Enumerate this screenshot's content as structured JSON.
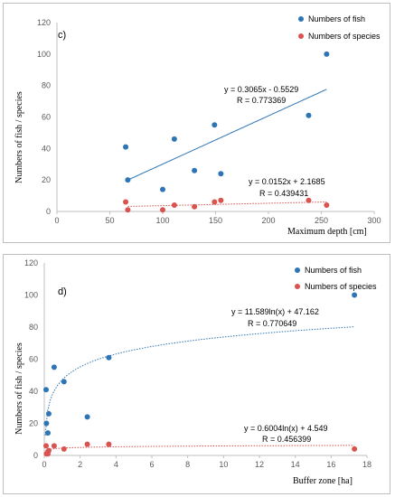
{
  "chart_data": [
    {
      "type": "scatter",
      "panel_label": "c)",
      "ylabel": "Numbers of fish / species",
      "xlabel": "Maximum depth [cm]",
      "xlim": [
        0,
        300
      ],
      "ylim": [
        0,
        120
      ],
      "xticks": [
        0,
        50,
        100,
        150,
        200,
        250,
        300
      ],
      "yticks": [
        0,
        20,
        40,
        60,
        80,
        100,
        120
      ],
      "legend_position": "top-right",
      "grid": false,
      "series": [
        {
          "name": "Numbers of fish",
          "color": "#2e75b6",
          "x": [
            65,
            67,
            100,
            111,
            130,
            149,
            155,
            238,
            255
          ],
          "y": [
            41,
            20,
            14,
            46,
            26,
            55,
            24,
            61,
            100
          ],
          "trendline": {
            "kind": "linear",
            "slope": 0.3065,
            "intercept": -0.5529,
            "x_range": [
              67,
              255
            ],
            "style": "solid"
          },
          "equation": "y = 0.3065x - 0.5529",
          "r_text": "R = 0.773369"
        },
        {
          "name": "Numbers of species",
          "color": "#d9534f",
          "x": [
            65,
            67,
            100,
            111,
            130,
            149,
            155,
            238,
            255
          ],
          "y": [
            6,
            1,
            1,
            4,
            3,
            6,
            7,
            7,
            4
          ],
          "trendline": {
            "kind": "linear",
            "slope": 0.0152,
            "intercept": 2.1685,
            "x_range": [
              67,
              255
            ],
            "style": "dotted"
          },
          "equation": "y = 0.0152x + 2.1685",
          "r_text": "R = 0.439431"
        }
      ]
    },
    {
      "type": "scatter",
      "panel_label": "d)",
      "ylabel": "Numbers of fish / species",
      "xlabel": "Buffer zone [ha]",
      "xlim": [
        0,
        18
      ],
      "ylim": [
        0,
        120
      ],
      "xticks": [
        0,
        2,
        4,
        6,
        8,
        10,
        12,
        14,
        16,
        18
      ],
      "yticks": [
        0,
        20,
        40,
        60,
        80,
        100,
        120
      ],
      "legend_position": "top-right",
      "grid": false,
      "series": [
        {
          "name": "Numbers of fish",
          "color": "#2e75b6",
          "x": [
            0.1,
            0.12,
            0.2,
            0.25,
            0.55,
            1.1,
            2.4,
            3.6,
            17.3
          ],
          "y": [
            41,
            20,
            14,
            26,
            55,
            46,
            24,
            61,
            100
          ],
          "trendline": {
            "kind": "log",
            "a": 11.589,
            "b": 47.162,
            "x_range": [
              0.05,
              17.3
            ],
            "style": "dotted"
          },
          "equation": "y = 11.589ln(x) + 47.162",
          "r_text": "R = 0.770649"
        },
        {
          "name": "Numbers of species",
          "color": "#d9534f",
          "x": [
            0.1,
            0.12,
            0.2,
            0.25,
            0.55,
            1.1,
            2.4,
            3.6,
            17.3
          ],
          "y": [
            6,
            1,
            1,
            3,
            6,
            4,
            7,
            7,
            4
          ],
          "trendline": {
            "kind": "log",
            "a": 0.6004,
            "b": 4.549,
            "x_range": [
              0.05,
              17.3
            ],
            "style": "dotted"
          },
          "equation": "y = 0.6004ln(x) + 4.549",
          "r_text": "R = 0.456399"
        }
      ]
    }
  ]
}
